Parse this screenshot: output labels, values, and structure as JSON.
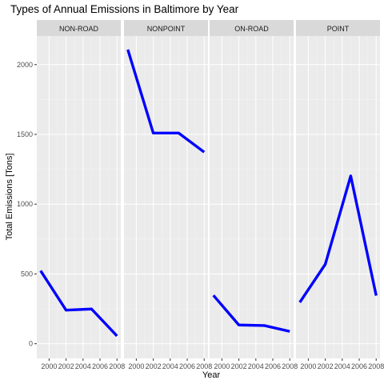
{
  "chart_data": {
    "type": "line",
    "title": "Types of Annual Emissions in Baltimore by Year",
    "xlabel": "Year",
    "ylabel": "Total Emissions [Tons]",
    "x": [
      1999,
      2002,
      2005,
      2008
    ],
    "xticks": [
      2000,
      2002,
      2004,
      2006,
      2008
    ],
    "xlim": [
      1998.55,
      2008.45
    ],
    "yticks": [
      0,
      500,
      1000,
      1500,
      2000
    ],
    "ylim": [
      -105,
      2205
    ],
    "grid": true,
    "line_color": "#0000ff",
    "panel_background": "#ebebeb",
    "strip_background": "#d9d9d9",
    "panels": [
      {
        "label": "NON-ROAD",
        "values": [
          522.94,
          240.85,
          248.93,
          55.82
        ]
      },
      {
        "label": "NONPOINT",
        "values": [
          2107.63,
          1509.5,
          1509.5,
          1373.21
        ]
      },
      {
        "label": "ON-ROAD",
        "values": [
          346.82,
          134.31,
          130.43,
          88.28
        ]
      },
      {
        "label": "POINT",
        "values": [
          296.8,
          569.26,
          1202.49,
          344.98
        ]
      }
    ]
  }
}
